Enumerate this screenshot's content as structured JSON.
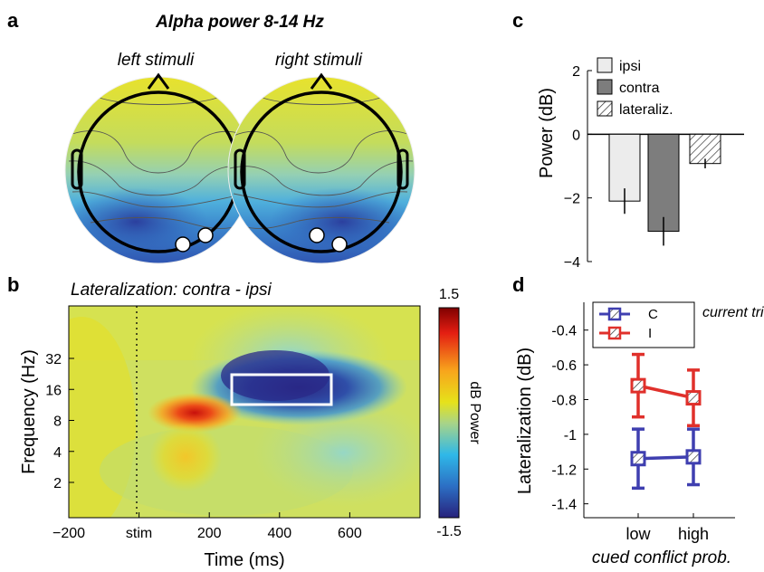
{
  "panels": {
    "a": {
      "letter": "a",
      "title": "Alpha power 8-14 Hz",
      "left_label": "left stimuli",
      "right_label": "right stimuli"
    },
    "b": {
      "letter": "b",
      "title": "Lateralization: contra - ipsi",
      "xlabel": "Time (ms)",
      "ylabel": "Frequency (Hz)",
      "xticks": [
        "−200",
        "stim",
        "200",
        "400",
        "600"
      ],
      "yticks": [
        "32",
        "16",
        "8",
        "4",
        "2"
      ],
      "colorbar_label": "dB Power",
      "colorbar_max": "1.5",
      "colorbar_min": "-1.5"
    },
    "c": {
      "letter": "c",
      "ylabel": "Power (dB)",
      "yticks": [
        "2",
        "0",
        "−2",
        "−4"
      ]
    },
    "d": {
      "letter": "d",
      "ylabel": "Lateralization (dB)",
      "xlabel": "cued conflict prob.",
      "legend_title": "current trial",
      "xticks": [
        "low",
        "high"
      ],
      "yticks": [
        "-0.4",
        "-0.6",
        "-0.8",
        "-1",
        "-1.2",
        "-1.4"
      ]
    }
  },
  "colors": {
    "ipsi": "#ececec",
    "contra": "#7d7d7d",
    "congruent": "#3f3fb0",
    "incongruent": "#e0302b"
  },
  "chart_data": [
    {
      "type": "heatmap",
      "panel": "a",
      "title": "Alpha power 8-14 Hz",
      "maps": [
        "left stimuli",
        "right stimuli"
      ]
    },
    {
      "type": "heatmap",
      "panel": "b",
      "title": "Lateralization: contra - ipsi",
      "xlabel": "Time (ms)",
      "ylabel": "Frequency (Hz)",
      "x_range": [
        -200,
        800
      ],
      "y_ticks": [
        2,
        4,
        8,
        16,
        32
      ],
      "y_scale": "log",
      "color_range": [
        -1.5,
        1.5
      ],
      "colorbar_label": "dB Power",
      "highlight_window": {
        "time_ms": [
          280,
          560
        ],
        "freq_hz": [
          8,
          14
        ]
      }
    },
    {
      "type": "bar",
      "panel": "c",
      "categories": [
        "ipsi",
        "contra",
        "lateraliz."
      ],
      "values": [
        -2.1,
        -3.05,
        -0.92
      ],
      "errors": [
        0.4,
        0.45,
        0.15
      ],
      "ylabel": "Power (dB)",
      "ylim": [
        -4,
        2
      ],
      "legend_position": "top-left"
    },
    {
      "type": "line",
      "panel": "d",
      "categories": [
        "low",
        "high"
      ],
      "series": [
        {
          "name": "C",
          "values": [
            -1.14,
            -1.13
          ],
          "errors": [
            0.17,
            0.16
          ]
        },
        {
          "name": "I",
          "values": [
            -0.72,
            -0.79
          ],
          "errors": [
            0.18,
            0.16
          ]
        }
      ],
      "xlabel": "cued conflict prob.",
      "ylabel": "Lateralization (dB)",
      "ylim": [
        -1.48,
        -0.24
      ],
      "legend_position": "top-left"
    }
  ]
}
